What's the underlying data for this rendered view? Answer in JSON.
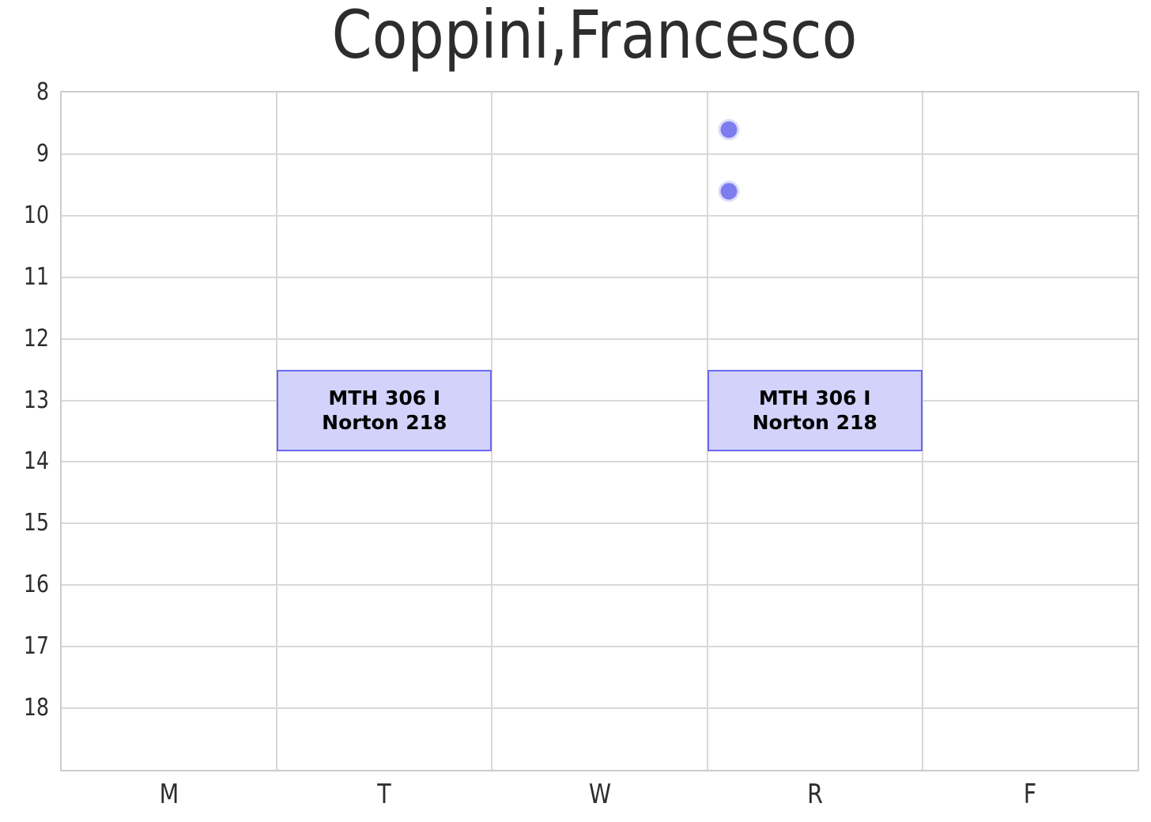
{
  "chart_data": {
    "type": "gantt",
    "description": "Weekly course schedule grid: days of week on x-axis, hour of day (24h) on inverted y-axis",
    "title": "Coppini,Francesco",
    "x_axis": {
      "tick_labels": [
        "M",
        "T",
        "W",
        "R",
        "F"
      ],
      "category_positions": [
        0,
        1,
        2,
        3,
        4
      ],
      "xlim": [
        -0.5,
        4.5
      ],
      "gridlines_at": [
        0.5,
        1.5,
        2.5,
        3.5
      ]
    },
    "y_axis": {
      "tick_labels": [
        "8",
        "9",
        "10",
        "11",
        "12",
        "13",
        "14",
        "15",
        "16",
        "17",
        "18"
      ],
      "ticks": [
        8,
        9,
        10,
        11,
        12,
        13,
        14,
        15,
        16,
        17,
        18
      ],
      "ylim": [
        19,
        8
      ],
      "inverted": true,
      "unit": "hour of day (24h)",
      "gridlines_at": [
        9,
        10,
        11,
        12,
        13,
        14,
        15,
        16,
        17,
        18
      ]
    },
    "grid": true,
    "legend_position": "none",
    "events": [
      {
        "day": "T",
        "day_index": 1,
        "start_hour": 12.5,
        "end_hour": 13.83,
        "label_line1": "MTH 306 I",
        "label_line2": "Norton 218"
      },
      {
        "day": "R",
        "day_index": 3,
        "start_hour": 12.5,
        "end_hour": 13.83,
        "label_line1": "MTH 306 I",
        "label_line2": "Norton 218"
      }
    ],
    "points": [
      {
        "x_day_units": 2.6,
        "hour": 8.6
      },
      {
        "x_day_units": 2.6,
        "hour": 9.6
      }
    ],
    "colors": {
      "event_fill": "#d2d2fa",
      "event_border": "#6969f0",
      "event_text": "#000000",
      "point_fill": "#7d7df0",
      "grid_line": "#d9d9d9",
      "frame": "#cccccc",
      "title_text": "#2d2d2d",
      "tick_text": "#2d2d2d",
      "background": "#ffffff"
    }
  }
}
